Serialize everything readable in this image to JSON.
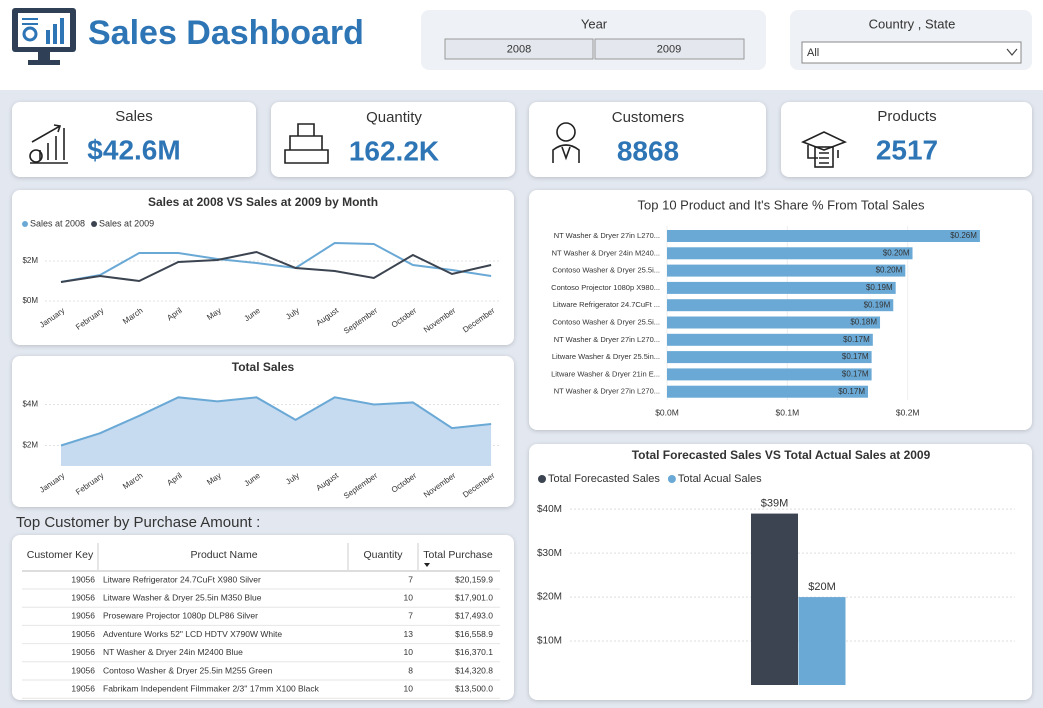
{
  "header": {
    "title": "Sales Dashboard"
  },
  "filters": {
    "year": {
      "label": "Year",
      "options": [
        "2008",
        "2009"
      ]
    },
    "location": {
      "label": "Country , State",
      "selected": "All"
    }
  },
  "kpis": [
    {
      "label": "Sales",
      "value": "$42.6M"
    },
    {
      "label": "Quantity",
      "value": "162.2K"
    },
    {
      "label": "Customers",
      "value": "8868"
    },
    {
      "label": "Products",
      "value": "2517"
    }
  ],
  "chart_data": [
    {
      "type": "line",
      "title": "Sales at 2008 VS Sales at 2009 by Month",
      "categories": [
        "January",
        "February",
        "March",
        "April",
        "May",
        "June",
        "July",
        "August",
        "September",
        "October",
        "November",
        "December"
      ],
      "series": [
        {
          "name": "Sales at 2008",
          "color": "#6aa9d6",
          "values": [
            0.95,
            1.3,
            2.4,
            2.4,
            2.1,
            1.9,
            1.65,
            2.9,
            2.85,
            1.8,
            1.55,
            1.25
          ]
        },
        {
          "name": "Sales at 2009",
          "color": "#3b4450",
          "values": [
            0.95,
            1.25,
            1.0,
            1.95,
            2.05,
            2.45,
            1.65,
            1.5,
            1.15,
            2.3,
            1.35,
            1.8
          ]
        }
      ],
      "ylim": [
        0,
        3.3
      ],
      "yticks": [
        {
          "value": 0,
          "label": "$0M"
        },
        {
          "value": 2,
          "label": "$2M"
        }
      ],
      "grid": true,
      "legend": "top-left"
    },
    {
      "type": "area",
      "title": "Total Sales",
      "categories": [
        "January",
        "February",
        "March",
        "April",
        "May",
        "June",
        "July",
        "August",
        "September",
        "October",
        "November",
        "December"
      ],
      "values": [
        2.0,
        2.6,
        3.45,
        4.35,
        4.15,
        4.35,
        3.25,
        4.35,
        4.0,
        4.1,
        2.85,
        3.05
      ],
      "color": "#6aa9d6",
      "fill": "#c6daf0",
      "ylim": [
        1,
        5
      ],
      "yticks": [
        {
          "value": 2,
          "label": "$2M"
        },
        {
          "value": 4,
          "label": "$4M"
        }
      ],
      "grid": true
    },
    {
      "type": "hbar",
      "title": "Top 10 Product and It's Share % From Total Sales",
      "categories": [
        "NT Washer & Dryer 27in L270...",
        "NT Washer & Dryer 24in M240...",
        "Contoso Washer & Dryer 25.5i...",
        "Contoso Projector 1080p X980...",
        "Litware Refrigerator 24.7CuFt ...",
        "Contoso Washer & Dryer 25.5i...",
        "NT Washer & Dryer 27in L270...",
        "Litware Washer & Dryer 25.5in...",
        "Litware Washer & Dryer 21in E...",
        "NT Washer & Dryer 27in L270..."
      ],
      "values": [
        0.26,
        0.204,
        0.198,
        0.19,
        0.188,
        0.177,
        0.171,
        0.17,
        0.17,
        0.167
      ],
      "value_labels": [
        "$0.26M",
        "$0.20M",
        "$0.20M",
        "$0.19M",
        "$0.19M",
        "$0.18M",
        "$0.17M",
        "$0.17M",
        "$0.17M",
        "$0.17M"
      ],
      "color": "#6aa9d6",
      "xlim": [
        0,
        0.28
      ],
      "xticks": [
        {
          "value": 0,
          "label": "$0.0M"
        },
        {
          "value": 0.1,
          "label": "$0.1M"
        },
        {
          "value": 0.2,
          "label": "$0.2M"
        }
      ],
      "grid": true
    },
    {
      "type": "bar",
      "title": "Total Forecasted Sales VS Total Actual Sales at 2009",
      "categories": [
        null
      ],
      "series": [
        {
          "name": "Total Forecasted Sales",
          "color": "#3b4450",
          "values": [
            39
          ],
          "value_labels": [
            "$39M"
          ]
        },
        {
          "name": "Total Acual Sales",
          "color": "#6aa9d6",
          "values": [
            20
          ],
          "value_labels": [
            "$20M"
          ]
        }
      ],
      "ylim": [
        0,
        43
      ],
      "yticks": [
        {
          "value": 10,
          "label": "$10M"
        },
        {
          "value": 20,
          "label": "$20M"
        },
        {
          "value": 30,
          "label": "$30M"
        },
        {
          "value": 40,
          "label": "$40M"
        }
      ],
      "grid": true,
      "legend": "top-left"
    }
  ],
  "table": {
    "title": "Top Customer by Purchase Amount :",
    "columns": [
      "Customer Key",
      "Product Name",
      "Quantity",
      "Total Purchase"
    ],
    "rows": [
      [
        "19056",
        "Litware Refrigerator 24.7CuFt X980 Silver",
        "7",
        "$20,159.9"
      ],
      [
        "19056",
        "Litware Washer & Dryer 25.5in M350 Blue",
        "10",
        "$17,901.0"
      ],
      [
        "19056",
        "Proseware Projector 1080p DLP86 Silver",
        "7",
        "$17,493.0"
      ],
      [
        "19056",
        "Adventure Works 52\" LCD HDTV X790W White",
        "13",
        "$16,558.9"
      ],
      [
        "19056",
        "NT Washer & Dryer 24in M2400 Blue",
        "10",
        "$16,370.1"
      ],
      [
        "19056",
        "Contoso Washer & Dryer 25.5in M255 Green",
        "8",
        "$14,320.8"
      ],
      [
        "19056",
        "Fabrikam Independent Filmmaker 2/3'' 17mm X100 Black",
        "10",
        "$13,500.0"
      ]
    ]
  }
}
